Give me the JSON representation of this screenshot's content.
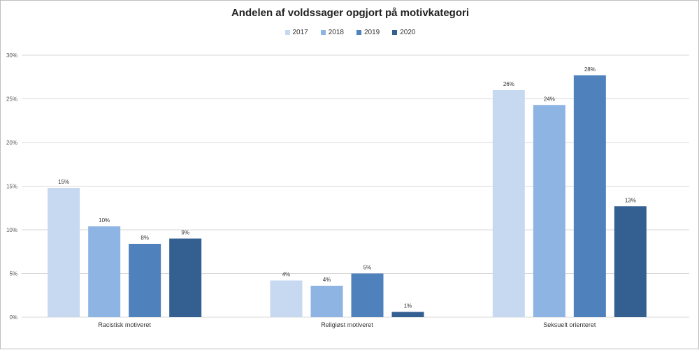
{
  "chart_data": {
    "type": "bar",
    "title": "Andelen af voldssager opgjort på motivkategori",
    "categories": [
      "Racistisk motiveret",
      "Religiøst motiveret",
      "Seksuelt orienteret"
    ],
    "series": [
      {
        "name": "2017",
        "values": [
          14.8,
          4.2,
          26.0
        ],
        "labels": [
          "15%",
          "4%",
          "26%"
        ],
        "color": "#c6d9f1"
      },
      {
        "name": "2018",
        "values": [
          10.4,
          3.6,
          24.3
        ],
        "labels": [
          "10%",
          "4%",
          "24%"
        ],
        "color": "#8eb4e3"
      },
      {
        "name": "2019",
        "values": [
          8.4,
          5.0,
          27.7
        ],
        "labels": [
          "8%",
          "5%",
          "28%"
        ],
        "color": "#4f81bd"
      },
      {
        "name": "2020",
        "values": [
          9.0,
          0.6,
          12.7
        ],
        "labels": [
          "9%",
          "1%",
          "13%"
        ],
        "color": "#335f91"
      }
    ],
    "yticks": [
      "0%",
      "5%",
      "10%",
      "15%",
      "20%",
      "25%",
      "30%"
    ],
    "ylim": [
      0,
      30
    ],
    "grid": true,
    "legend_position": "top"
  }
}
